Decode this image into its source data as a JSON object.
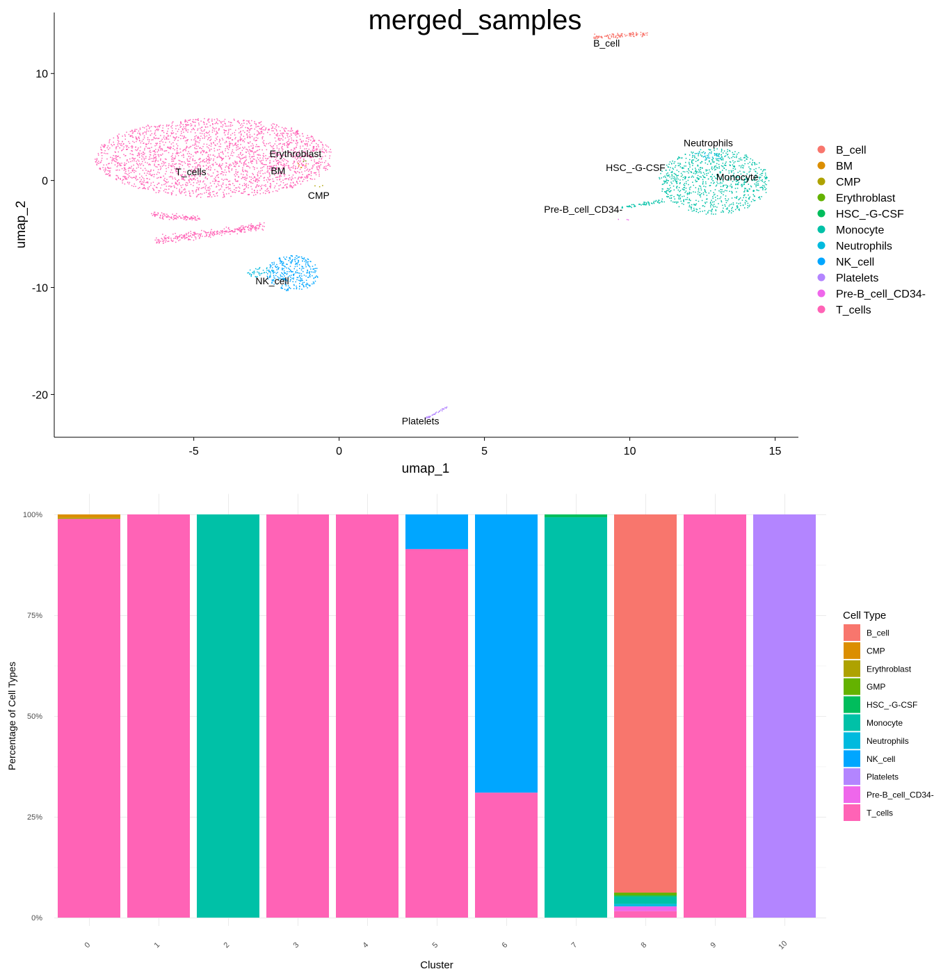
{
  "chart_data": [
    {
      "type": "scatter",
      "title": "merged_samples",
      "xlabel": "umap_1",
      "ylabel": "umap_2",
      "xlim": [
        -9.8,
        15.8
      ],
      "ylim": [
        -24,
        15.7
      ],
      "xticks": [
        -5,
        0,
        5,
        10,
        15
      ],
      "yticks": [
        10,
        0,
        -10,
        -20
      ],
      "legend_position": "right",
      "legend": [
        {
          "label": "B_cell",
          "color": "#F8766D"
        },
        {
          "label": "BM",
          "color": "#DB8E00"
        },
        {
          "label": "CMP",
          "color": "#AEA200"
        },
        {
          "label": "Erythroblast",
          "color": "#64B200"
        },
        {
          "label": "HSC_-G-CSF",
          "color": "#00BD5C"
        },
        {
          "label": "Monocyte",
          "color": "#00C1A7"
        },
        {
          "label": "Neutrophils",
          "color": "#00BADE"
        },
        {
          "label": "NK_cell",
          "color": "#00A6FF"
        },
        {
          "label": "Platelets",
          "color": "#B385FF"
        },
        {
          "label": "Pre-B_cell_CD34-",
          "color": "#EF67EB"
        },
        {
          "label": "T_cells",
          "color": "#FF63B6"
        }
      ],
      "clusters": [
        {
          "name": "B_cell",
          "color": "#F8766D",
          "n": 110,
          "shape": "band",
          "from": [
            8.8,
            13.4
          ],
          "to": [
            10.6,
            13.7
          ],
          "thickness": 0.7,
          "label_at": [
            9.2,
            12.5
          ]
        },
        {
          "name": "T_cells",
          "color": "#FF63B6",
          "n": 2500,
          "shape": "ellipse",
          "center": [
            -4.3,
            2.1
          ],
          "r": [
            4.1,
            3.7
          ],
          "label_at": [
            -5.1,
            0.5
          ]
        },
        {
          "name": "T_cells",
          "color": "#FF63B6",
          "n": 280,
          "shape": "band",
          "from": [
            -6.3,
            -5.6
          ],
          "to": [
            -2.6,
            -4.3
          ],
          "thickness": 1.1,
          "label_at": null
        },
        {
          "name": "T_cells",
          "color": "#FF63B6",
          "n": 110,
          "shape": "band",
          "from": [
            -6.4,
            -3.2
          ],
          "to": [
            -4.8,
            -3.6
          ],
          "thickness": 0.8,
          "label_at": null
        },
        {
          "name": "BM",
          "color": "#DB8E00",
          "n": 5,
          "shape": "ellipse",
          "center": [
            -1.4,
            1.4
          ],
          "r": [
            0.3,
            0.3
          ],
          "label_at": [
            -2.1,
            0.6
          ]
        },
        {
          "name": "CMP",
          "color": "#AEA200",
          "n": 3,
          "shape": "ellipse",
          "center": [
            -0.7,
            -0.6
          ],
          "r": [
            0.2,
            0.2
          ],
          "label_at": [
            -0.7,
            -1.7
          ]
        },
        {
          "name": "Erythroblast",
          "color": "#64B200",
          "n": 2,
          "shape": "ellipse",
          "center": [
            -1.3,
            1.8
          ],
          "r": [
            0.2,
            0.2
          ],
          "label_at": [
            -1.5,
            2.2
          ]
        },
        {
          "name": "HSC_-G-CSF",
          "color": "#00BD5C",
          "n": 2,
          "shape": "ellipse",
          "center": [
            11.6,
            0.4
          ],
          "r": [
            0.2,
            0.2
          ],
          "label_at": [
            10.2,
            0.9
          ]
        },
        {
          "name": "Monocyte",
          "color": "#00C1A7",
          "n": 900,
          "shape": "ellipse",
          "center": [
            12.9,
            -0.1
          ],
          "r": [
            1.9,
            3.1
          ],
          "label_at": [
            13.7,
            0.0
          ]
        },
        {
          "name": "Monocyte",
          "color": "#00C1A7",
          "n": 60,
          "shape": "band",
          "from": [
            9.7,
            -2.5
          ],
          "to": [
            11.2,
            -1.9
          ],
          "thickness": 0.5,
          "label_at": null
        },
        {
          "name": "Neutrophils",
          "color": "#00BADE",
          "n": 30,
          "shape": "ellipse",
          "center": [
            12.7,
            2.3
          ],
          "r": [
            0.6,
            0.4
          ],
          "label_at": [
            12.7,
            3.2
          ]
        },
        {
          "name": "NK_cell",
          "color": "#00A6FF",
          "n": 320,
          "shape": "ellipse",
          "center": [
            -1.6,
            -8.7
          ],
          "r": [
            0.9,
            1.7
          ],
          "label_at": [
            -2.3,
            -9.7
          ]
        },
        {
          "name": "NK_cell",
          "color": "#00BADE",
          "n": 40,
          "shape": "ellipse",
          "center": [
            -2.7,
            -8.6
          ],
          "r": [
            0.5,
            0.5
          ],
          "label_at": null
        },
        {
          "name": "Platelets",
          "color": "#B385FF",
          "n": 40,
          "shape": "band",
          "from": [
            3.0,
            -22.2
          ],
          "to": [
            3.7,
            -21.2
          ],
          "thickness": 0.15,
          "label_at": [
            2.8,
            -22.8
          ]
        },
        {
          "name": "Pre-B_cell_CD34-",
          "color": "#EF67EB",
          "n": 3,
          "shape": "ellipse",
          "center": [
            9.8,
            -3.6
          ],
          "r": [
            0.2,
            0.15
          ],
          "label_at": [
            8.4,
            -3.0
          ]
        }
      ]
    },
    {
      "type": "bar",
      "stacked": true,
      "xlabel": "Cluster",
      "ylabel": "Percentage of Cell Types",
      "yticks": [
        "0%",
        "25%",
        "50%",
        "75%",
        "100%"
      ],
      "ylim": [
        0,
        1
      ],
      "categories": [
        "0",
        "1",
        "2",
        "3",
        "4",
        "5",
        "6",
        "7",
        "8",
        "9",
        "10"
      ],
      "legend_title": "Cell Type",
      "legend_position": "right",
      "series": [
        {
          "name": "B_cell",
          "color": "#F8766D",
          "values": [
            0,
            0,
            0,
            0,
            0,
            0,
            0,
            0,
            0.938,
            0,
            0
          ]
        },
        {
          "name": "CMP",
          "color": "#DB8E00",
          "values": [
            0.008,
            0,
            0,
            0,
            0,
            0,
            0,
            0,
            0,
            0,
            0
          ]
        },
        {
          "name": "Erythroblast",
          "color": "#AEA200",
          "values": [
            0.003,
            0,
            0,
            0,
            0,
            0,
            0,
            0,
            0,
            0,
            0
          ]
        },
        {
          "name": "GMP",
          "color": "#64B200",
          "values": [
            0,
            0,
            0,
            0,
            0,
            0,
            0,
            0,
            0.007,
            0,
            0
          ]
        },
        {
          "name": "HSC_-G-CSF",
          "color": "#00BD5C",
          "values": [
            0,
            0,
            0,
            0,
            0,
            0,
            0,
            0.007,
            0.003,
            0,
            0
          ]
        },
        {
          "name": "Monocyte",
          "color": "#00C1A7",
          "values": [
            0,
            0,
            1,
            0,
            0,
            0,
            0,
            0.993,
            0.018,
            0,
            0
          ]
        },
        {
          "name": "Neutrophils",
          "color": "#00BADE",
          "values": [
            0,
            0,
            0,
            0,
            0,
            0,
            0,
            0,
            0.006,
            0,
            0
          ]
        },
        {
          "name": "NK_cell",
          "color": "#00A6FF",
          "values": [
            0,
            0,
            0,
            0,
            0,
            0.086,
            0.69,
            0,
            0,
            0,
            0
          ]
        },
        {
          "name": "Platelets",
          "color": "#B385FF",
          "values": [
            0,
            0,
            0,
            0,
            0,
            0,
            0,
            0,
            0,
            0,
            1
          ]
        },
        {
          "name": "Pre-B_cell_CD34-",
          "color": "#EF67EB",
          "values": [
            0,
            0,
            0,
            0,
            0,
            0,
            0,
            0,
            0.012,
            0,
            0
          ]
        },
        {
          "name": "T_cells",
          "color": "#FF63B6",
          "values": [
            0.989,
            1,
            0,
            1,
            1,
            0.914,
            0.31,
            0,
            0.016,
            1,
            0
          ]
        }
      ]
    }
  ]
}
